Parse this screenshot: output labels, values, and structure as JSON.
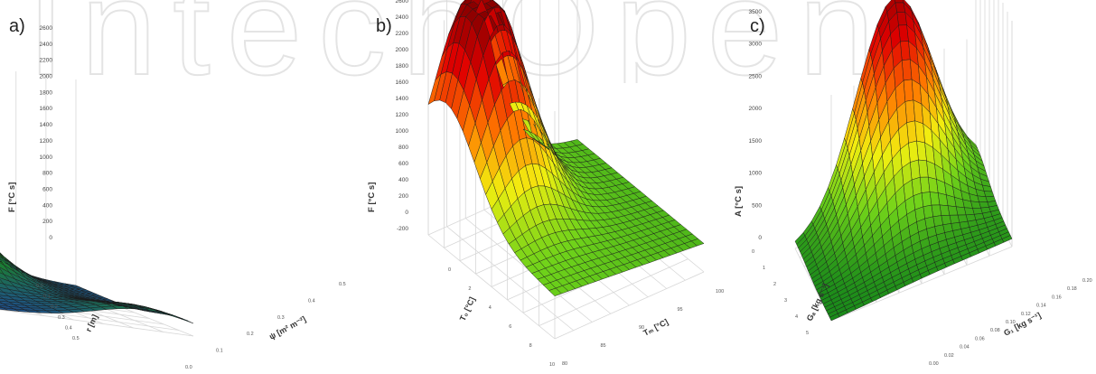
{
  "watermark": "IntechOpen",
  "chart_data": [
    {
      "type": "surface",
      "panel_label": "a)",
      "zlabel": "F [°C s]",
      "zticks": [
        0,
        200,
        400,
        600,
        800,
        1000,
        1200,
        1400,
        1600,
        1800,
        2000,
        2200,
        2400,
        2600
      ],
      "zlim": [
        0,
        2600
      ],
      "xlabel": "r [m]",
      "xticks": [
        "0.0",
        "0.1",
        "0.2",
        "0.3",
        "0.4",
        "0.5"
      ],
      "ylabel": "ψ [m² m⁻²]",
      "yticks": [
        "0.0",
        "0.1",
        "0.2",
        "0.3",
        "0.4",
        "0.5"
      ],
      "colormap": [
        "#1f4f8a",
        "#1a8a1a",
        "#6fd21a",
        "#f2ef10",
        "#ff7a00",
        "#e00000",
        "#8a0000"
      ],
      "grid": true
    },
    {
      "type": "surface",
      "panel_label": "b)",
      "zlabel": "F [°C s]",
      "zticks": [
        -200,
        0,
        200,
        400,
        600,
        800,
        1000,
        1200,
        1400,
        1600,
        1800,
        2000,
        2200,
        2400,
        2600
      ],
      "zlim": [
        -200,
        2600
      ],
      "xlabel": "T₀ [°C]",
      "xticks": [
        "0",
        "2",
        "4",
        "6",
        "8",
        "10"
      ],
      "ylabel": "Tₘ [°C]",
      "yticks": [
        "80",
        "85",
        "90",
        "95",
        "100"
      ],
      "colormap": [
        "#1a8a1a",
        "#6fd21a",
        "#f2ef10",
        "#ff7a00",
        "#e00000",
        "#8a0000"
      ],
      "grid": true
    },
    {
      "type": "surface",
      "panel_label": "c)",
      "zlabel": "A [°C s]",
      "zticks": [
        0,
        500,
        1000,
        1500,
        2000,
        2500,
        3000,
        3500
      ],
      "zlim": [
        0,
        3500
      ],
      "xlabel": "Gₐ [kg s⁻¹]",
      "xticks": [
        "0",
        "1",
        "2",
        "3",
        "4",
        "5"
      ],
      "ylabel": "G₁ [kg s⁻¹]",
      "yticks": [
        "0.00",
        "0.02",
        "0.04",
        "0.06",
        "0.08",
        "0.10",
        "0.12",
        "0.14",
        "0.16",
        "0.18",
        "0.20"
      ],
      "colormap": [
        "#1a8a1a",
        "#6fd21a",
        "#f2ef10",
        "#ff7a00",
        "#e00000",
        "#8a0000"
      ],
      "grid": true
    }
  ]
}
